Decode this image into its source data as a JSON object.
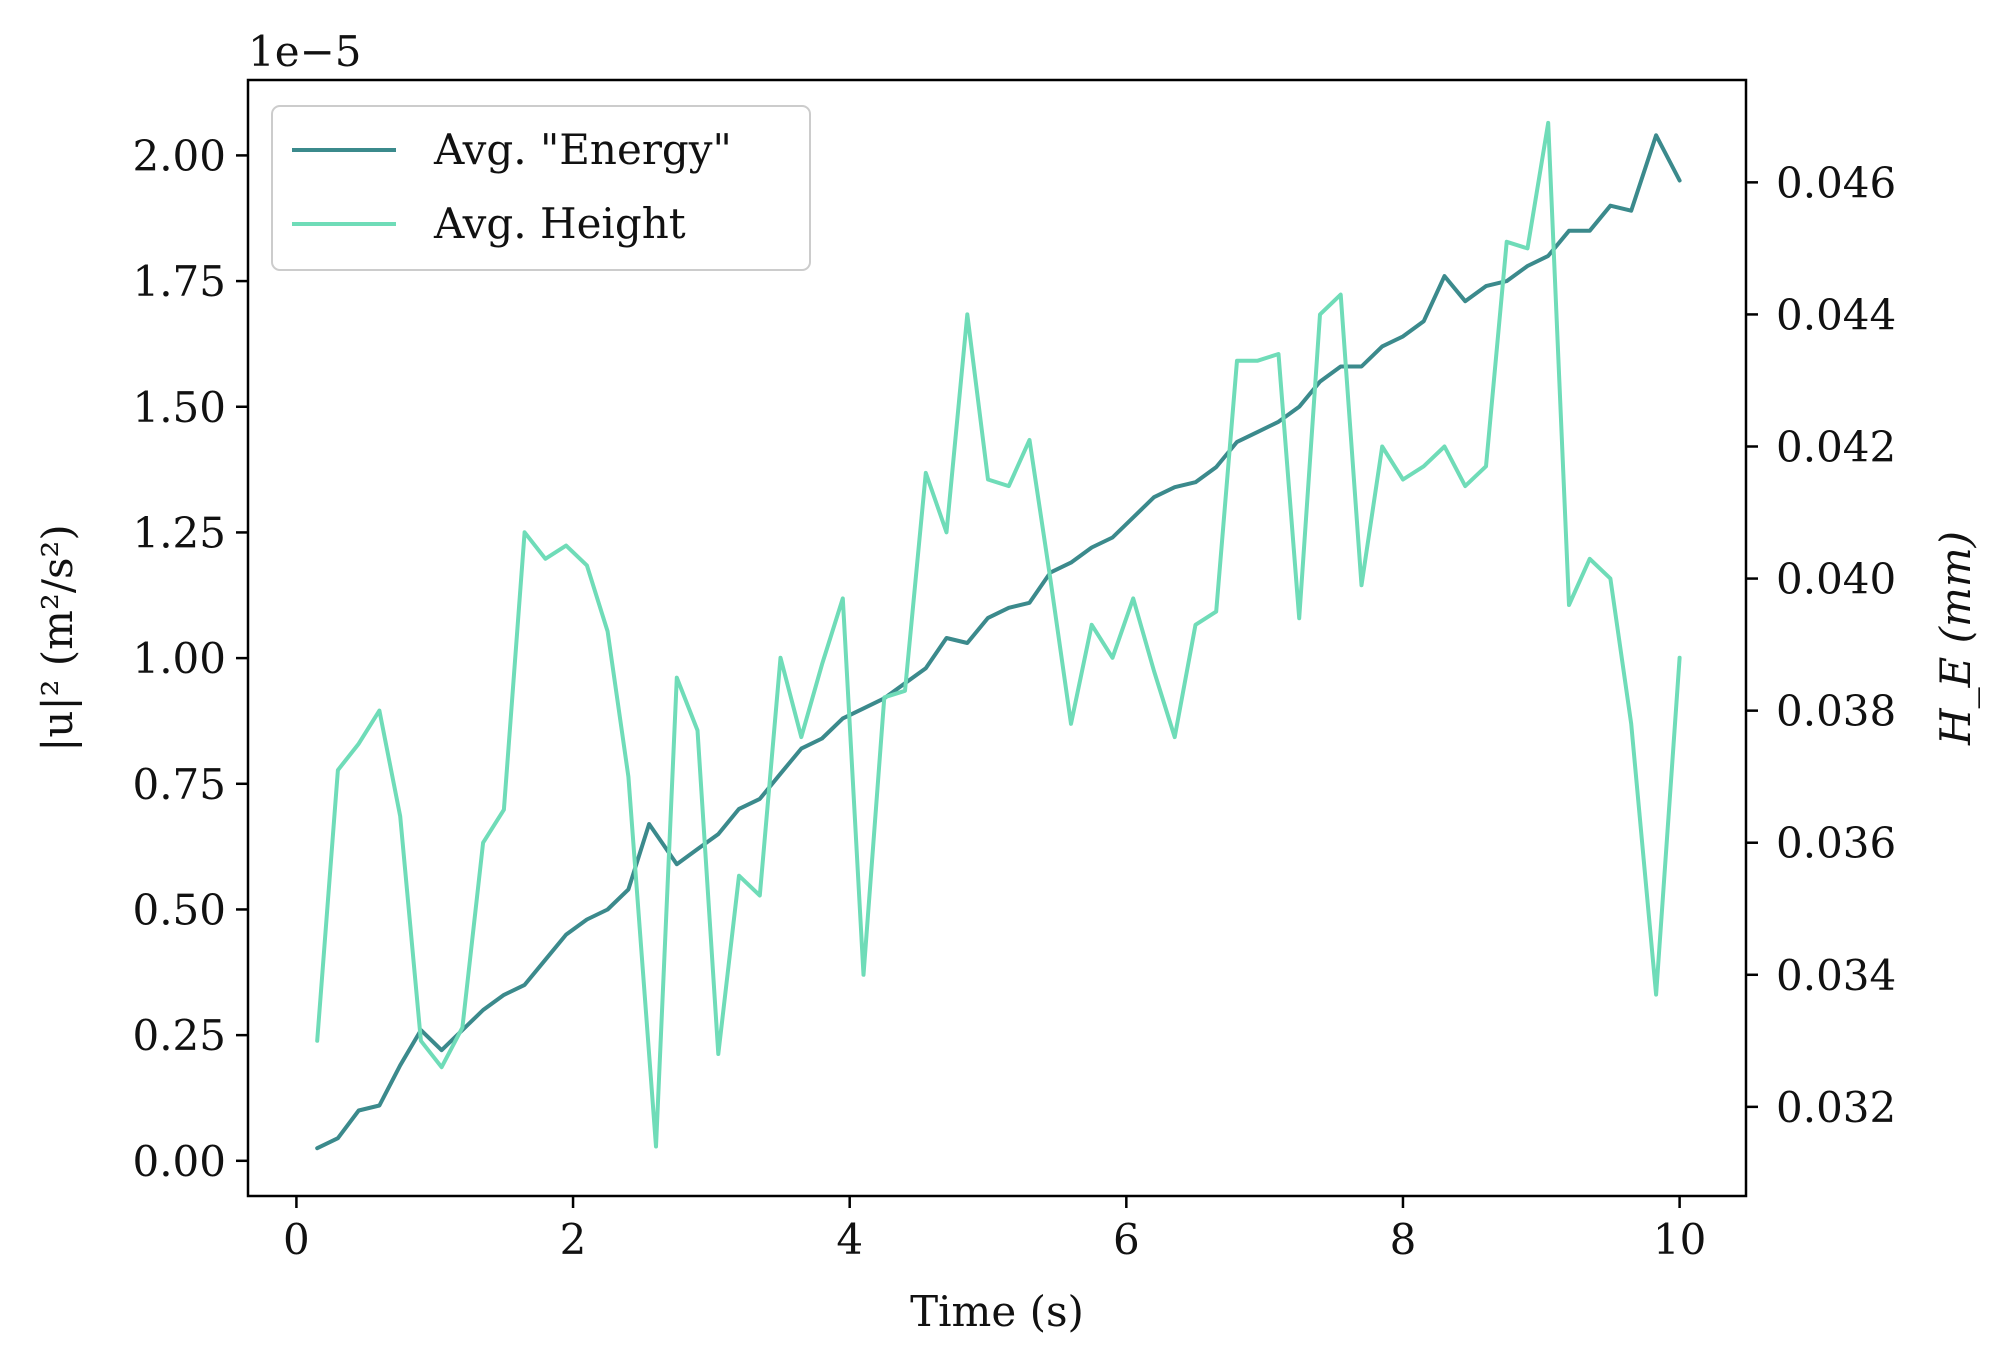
{
  "chart_data": {
    "type": "line",
    "xlabel": "Time (s)",
    "ylabel_left": "|u|² (m²/s²)",
    "ylabel_right": "H_E (mm)",
    "left_axis_offset_text": "1e−5",
    "x_ticks": [
      "0",
      "2",
      "4",
      "6",
      "8",
      "10"
    ],
    "x_tick_values": [
      0,
      2,
      4,
      6,
      8,
      10
    ],
    "y_left_ticks": [
      "0.00",
      "0.25",
      "0.50",
      "0.75",
      "1.00",
      "1.25",
      "1.50",
      "1.75",
      "2.00"
    ],
    "y_left_tick_values": [
      0,
      0.25,
      0.5,
      0.75,
      1.0,
      1.25,
      1.5,
      1.75,
      2.0
    ],
    "y_right_ticks": [
      "0.032",
      "0.034",
      "0.036",
      "0.038",
      "0.040",
      "0.042",
      "0.044",
      "0.046"
    ],
    "y_right_tick_values": [
      0.032,
      0.034,
      0.036,
      0.038,
      0.04,
      0.042,
      0.044,
      0.046
    ],
    "xlim": [
      -0.35,
      10.48
    ],
    "ylim_left": [
      -0.07,
      2.15
    ],
    "ylim_right": [
      0.03065,
      0.04755
    ],
    "legend_position": "top-left",
    "series": [
      {
        "name": "Avg. \"Energy\"",
        "axis": "left",
        "color": "#3b8a8c",
        "x": [
          0.15,
          0.3,
          0.45,
          0.6,
          0.75,
          0.9,
          1.05,
          1.2,
          1.35,
          1.5,
          1.65,
          1.8,
          1.95,
          2.1,
          2.25,
          2.4,
          2.55,
          2.65,
          2.75,
          2.9,
          3.05,
          3.2,
          3.35,
          3.5,
          3.65,
          3.8,
          3.95,
          4.1,
          4.25,
          4.4,
          4.55,
          4.7,
          4.85,
          5.0,
          5.15,
          5.3,
          5.45,
          5.6,
          5.75,
          5.9,
          6.05,
          6.2,
          6.35,
          6.5,
          6.65,
          6.8,
          6.95,
          7.1,
          7.25,
          7.4,
          7.55,
          7.7,
          7.85,
          8.0,
          8.15,
          8.3,
          8.45,
          8.6,
          8.75,
          8.9,
          9.05,
          9.2,
          9.35,
          9.5,
          9.65,
          9.83,
          10.0
        ],
        "values": [
          0.025,
          0.045,
          0.1,
          0.11,
          0.19,
          0.26,
          0.22,
          0.26,
          0.3,
          0.33,
          0.35,
          0.4,
          0.45,
          0.48,
          0.5,
          0.54,
          0.67,
          0.63,
          0.59,
          0.62,
          0.65,
          0.7,
          0.72,
          0.77,
          0.82,
          0.84,
          0.88,
          0.9,
          0.92,
          0.95,
          0.98,
          1.04,
          1.03,
          1.08,
          1.1,
          1.11,
          1.17,
          1.19,
          1.22,
          1.24,
          1.28,
          1.32,
          1.34,
          1.35,
          1.38,
          1.43,
          1.45,
          1.47,
          1.5,
          1.55,
          1.58,
          1.58,
          1.62,
          1.64,
          1.67,
          1.76,
          1.71,
          1.74,
          1.75,
          1.78,
          1.8,
          1.85,
          1.85,
          1.9,
          1.89,
          2.04,
          1.95
        ]
      },
      {
        "name": "Avg. Height",
        "axis": "right",
        "color": "#6fdcb8",
        "x": [
          0.15,
          0.3,
          0.45,
          0.6,
          0.75,
          0.9,
          1.05,
          1.2,
          1.35,
          1.5,
          1.65,
          1.8,
          1.95,
          2.1,
          2.25,
          2.4,
          2.6,
          2.75,
          2.9,
          3.05,
          3.2,
          3.35,
          3.5,
          3.65,
          3.8,
          3.95,
          4.1,
          4.25,
          4.4,
          4.55,
          4.7,
          4.85,
          5.0,
          5.15,
          5.3,
          5.45,
          5.6,
          5.75,
          5.9,
          6.05,
          6.2,
          6.35,
          6.5,
          6.65,
          6.8,
          6.95,
          7.1,
          7.25,
          7.4,
          7.55,
          7.7,
          7.85,
          8.0,
          8.15,
          8.3,
          8.45,
          8.6,
          8.75,
          8.9,
          9.05,
          9.2,
          9.35,
          9.5,
          9.65,
          9.83,
          10.0
        ],
        "values": [
          0.033,
          0.0371,
          0.0375,
          0.038,
          0.0364,
          0.033,
          0.0326,
          0.0332,
          0.036,
          0.0365,
          0.0407,
          0.0403,
          0.0405,
          0.0402,
          0.0392,
          0.037,
          0.0314,
          0.0385,
          0.0377,
          0.0328,
          0.0355,
          0.0352,
          0.0388,
          0.0376,
          0.0387,
          0.0397,
          0.034,
          0.0382,
          0.0383,
          0.0416,
          0.0407,
          0.044,
          0.0415,
          0.0414,
          0.0421,
          0.04,
          0.0378,
          0.0393,
          0.0388,
          0.0397,
          0.0386,
          0.0376,
          0.0393,
          0.0395,
          0.0433,
          0.0433,
          0.0434,
          0.0394,
          0.044,
          0.0443,
          0.0399,
          0.042,
          0.0415,
          0.0417,
          0.042,
          0.0414,
          0.0417,
          0.0451,
          0.045,
          0.0469,
          0.0396,
          0.0403,
          0.04,
          0.0378,
          0.0337,
          0.0388
        ]
      }
    ],
    "grid": false
  }
}
